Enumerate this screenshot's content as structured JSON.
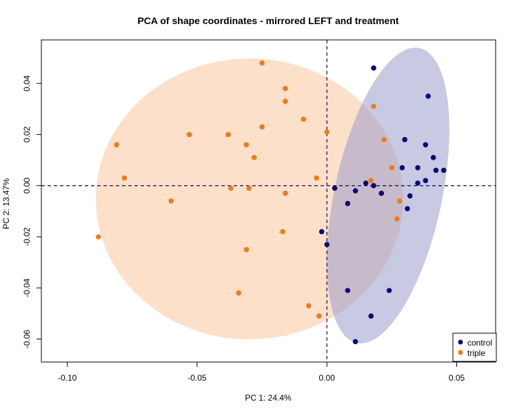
{
  "chart_data": {
    "type": "scatter",
    "title": "PCA of shape coordinates - mirrored LEFT and treatment",
    "xlabel": "PC 1: 24.4%",
    "ylabel": "PC 2: 13.47%",
    "xlim": [
      -0.11,
      0.065
    ],
    "ylim": [
      -0.069,
      0.057
    ],
    "xticks": [
      -0.1,
      -0.05,
      0.0,
      0.05
    ],
    "xtick_labels": [
      "-0.10",
      "-0.05",
      "0.00",
      "0.05"
    ],
    "yticks": [
      -0.06,
      -0.04,
      -0.02,
      0.0,
      0.02,
      0.04
    ],
    "ytick_labels": [
      "-0.06",
      "-0.04",
      "-0.02",
      "0.00",
      "0.02",
      "0.04"
    ],
    "grid": false,
    "reference_lines": {
      "x": 0,
      "y": 0,
      "style": "dashed",
      "color": "#0a0a5a"
    },
    "legend": {
      "position": "bottom-right",
      "entries": [
        "control",
        "triple"
      ]
    },
    "series": [
      {
        "name": "control",
        "color": "#0b0b73",
        "ellipse_color": "#9a9ccc",
        "points": [
          [
            0.018,
            0.046
          ],
          [
            0.039,
            0.035
          ],
          [
            0.03,
            0.018
          ],
          [
            0.038,
            0.016
          ],
          [
            0.041,
            0.011
          ],
          [
            0.029,
            0.007
          ],
          [
            0.035,
            0.007
          ],
          [
            0.042,
            0.006
          ],
          [
            0.045,
            0.006
          ],
          [
            0.038,
            0.002
          ],
          [
            0.015,
            0.001
          ],
          [
            0.018,
            0.0
          ],
          [
            0.035,
            0.001
          ],
          [
            0.003,
            -0.001
          ],
          [
            0.011,
            -0.002
          ],
          [
            0.021,
            -0.003
          ],
          [
            0.032,
            -0.004
          ],
          [
            0.008,
            -0.007
          ],
          [
            0.031,
            -0.009
          ],
          [
            -0.002,
            -0.018
          ],
          [
            0.0,
            -0.023
          ],
          [
            0.008,
            -0.041
          ],
          [
            0.024,
            -0.041
          ],
          [
            0.017,
            -0.051
          ],
          [
            0.011,
            -0.061
          ]
        ]
      },
      {
        "name": "triple",
        "color": "#f07a17",
        "ellipse_color": "#fcd8bd",
        "points": [
          [
            -0.025,
            0.048
          ],
          [
            -0.016,
            0.038
          ],
          [
            -0.016,
            0.033
          ],
          [
            0.018,
            0.031
          ],
          [
            -0.009,
            0.026
          ],
          [
            -0.025,
            0.023
          ],
          [
            0.0,
            0.021
          ],
          [
            -0.053,
            0.02
          ],
          [
            -0.038,
            0.02
          ],
          [
            0.022,
            0.018
          ],
          [
            -0.081,
            0.016
          ],
          [
            -0.031,
            0.016
          ],
          [
            -0.028,
            0.011
          ],
          [
            0.025,
            0.007
          ],
          [
            -0.004,
            0.003
          ],
          [
            -0.078,
            0.003
          ],
          [
            0.017,
            0.002
          ],
          [
            -0.037,
            -0.001
          ],
          [
            -0.03,
            -0.001
          ],
          [
            -0.016,
            -0.003
          ],
          [
            -0.06,
            -0.006
          ],
          [
            0.028,
            -0.006
          ],
          [
            0.027,
            -0.013
          ],
          [
            -0.017,
            -0.018
          ],
          [
            -0.088,
            -0.02
          ],
          [
            -0.031,
            -0.025
          ],
          [
            -0.034,
            -0.042
          ],
          [
            -0.007,
            -0.047
          ],
          [
            -0.003,
            -0.051
          ]
        ]
      }
    ]
  }
}
